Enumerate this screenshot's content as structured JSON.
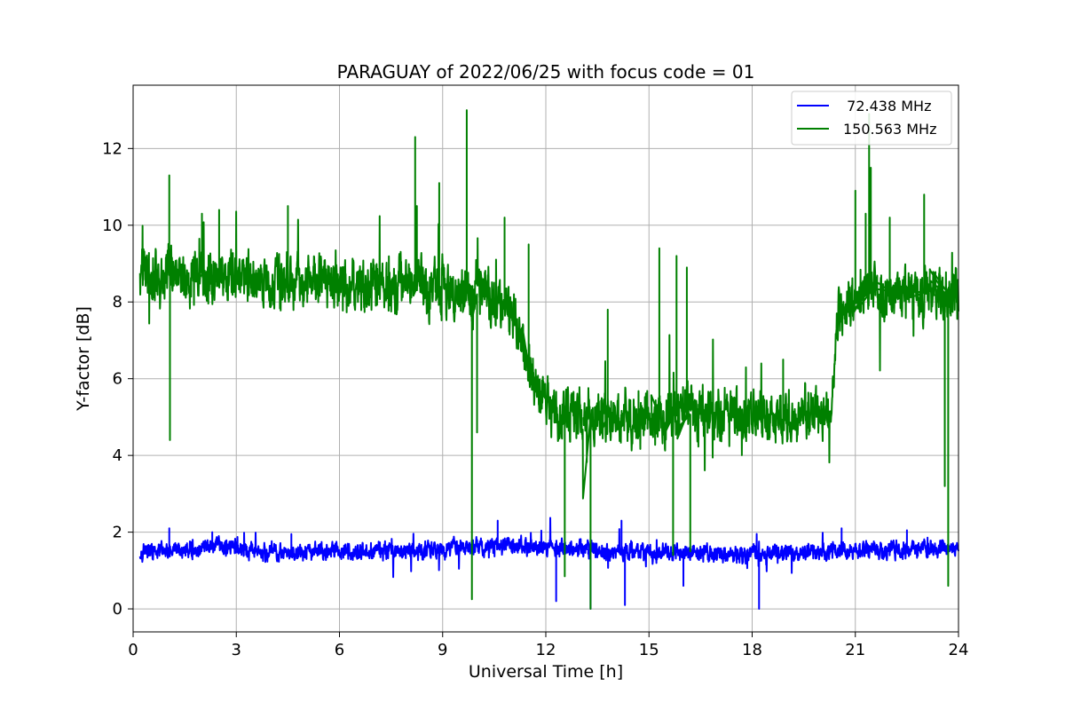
{
  "chart_data": {
    "type": "line",
    "title": "PARAGUAY of 2022/06/25 with focus code = 01",
    "xlabel": "Universal Time [h]",
    "ylabel": "Y-factor [dB]",
    "xlim": [
      0,
      24
    ],
    "ylim": [
      -0.6,
      13.65
    ],
    "xticks": [
      0,
      3,
      6,
      9,
      12,
      15,
      18,
      21,
      24
    ],
    "yticks": [
      0,
      2,
      4,
      6,
      8,
      10,
      12
    ],
    "grid": true,
    "legend_position": "top-right",
    "series": [
      {
        "name": "  72.438 MHz",
        "color": "#0000ff",
        "data_range": [
          0.2,
          24
        ],
        "baseline": [
          [
            0.2,
            1.5
          ],
          [
            1.5,
            1.5
          ],
          [
            2.5,
            1.65
          ],
          [
            3.0,
            1.55
          ],
          [
            4,
            1.45
          ],
          [
            6,
            1.5
          ],
          [
            8,
            1.52
          ],
          [
            9.5,
            1.6
          ],
          [
            10.5,
            1.65
          ],
          [
            12,
            1.6
          ],
          [
            14,
            1.5
          ],
          [
            16,
            1.45
          ],
          [
            18,
            1.4
          ],
          [
            20,
            1.5
          ],
          [
            22,
            1.55
          ],
          [
            24,
            1.6
          ]
        ],
        "noise": 0.3,
        "spikes": [
          [
            1.05,
            2.1
          ],
          [
            2.3,
            2.0
          ],
          [
            4.6,
            1.95
          ],
          [
            10.6,
            2.3
          ],
          [
            12.3,
            0.2
          ],
          [
            13.3,
            0.0
          ],
          [
            14.2,
            2.3
          ],
          [
            14.3,
            0.1
          ],
          [
            16.0,
            0.6
          ],
          [
            18.2,
            0.0
          ],
          [
            20.6,
            2.1
          ],
          [
            22.5,
            2.05
          ]
        ]
      },
      {
        "name": "150.563 MHz",
        "color": "#008000",
        "data_range": [
          0.2,
          24
        ],
        "baseline": [
          [
            0.2,
            8.7
          ],
          [
            2,
            8.7
          ],
          [
            4,
            8.6
          ],
          [
            6,
            8.5
          ],
          [
            8,
            8.4
          ],
          [
            9,
            8.3
          ],
          [
            10,
            8.2
          ],
          [
            10.8,
            8.0
          ],
          [
            11.2,
            7.2
          ],
          [
            11.6,
            6.0
          ],
          [
            12.0,
            5.3
          ],
          [
            13,
            5.0
          ],
          [
            15,
            5.0
          ],
          [
            17,
            5.1
          ],
          [
            18,
            5.0
          ],
          [
            19,
            4.9
          ],
          [
            20.3,
            5.1
          ],
          [
            20.5,
            7.8
          ],
          [
            21.5,
            8.3
          ],
          [
            24,
            8.2
          ]
        ],
        "noise": 0.9,
        "spikes": [
          [
            1.05,
            11.3
          ],
          [
            1.07,
            4.4
          ],
          [
            2.0,
            10.3
          ],
          [
            2.5,
            10.4
          ],
          [
            4.5,
            10.5
          ],
          [
            8.2,
            12.3
          ],
          [
            8.25,
            10.5
          ],
          [
            8.9,
            11.1
          ],
          [
            9.7,
            13.0
          ],
          [
            9.85,
            0.25
          ],
          [
            10.0,
            4.6
          ],
          [
            10.8,
            10.2
          ],
          [
            11.5,
            9.5
          ],
          [
            12.55,
            0.85
          ],
          [
            13.3,
            0.0
          ],
          [
            13.8,
            7.8
          ],
          [
            15.3,
            9.4
          ],
          [
            15.7,
            1.4
          ],
          [
            15.8,
            9.2
          ],
          [
            16.1,
            8.9
          ],
          [
            16.2,
            1.5
          ],
          [
            18.9,
            6.5
          ],
          [
            21.0,
            10.9
          ],
          [
            21.3,
            10.3
          ],
          [
            21.4,
            12.9
          ],
          [
            21.45,
            11.5
          ],
          [
            22.0,
            10.2
          ],
          [
            23.0,
            10.8
          ],
          [
            23.6,
            3.2
          ],
          [
            23.7,
            0.6
          ]
        ]
      }
    ]
  }
}
